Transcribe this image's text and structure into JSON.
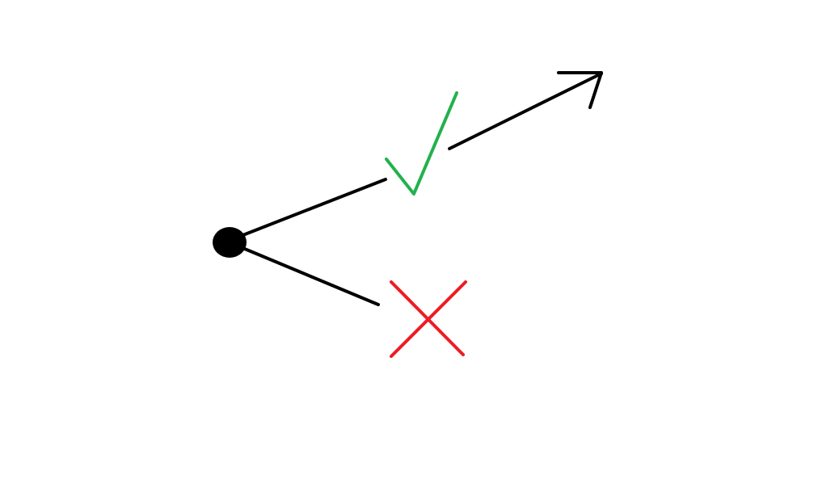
{
  "diagram": {
    "background": "#ffffff",
    "colors": {
      "line": "#000000",
      "check": "#22b14c",
      "cross": "#ed1c24"
    },
    "nodes": [
      {
        "name": "start-node",
        "shape": "filled-circle"
      }
    ],
    "branches": [
      {
        "name": "upper-branch",
        "marker": "check-icon",
        "outcome": "accepted",
        "continues_with": "arrow"
      },
      {
        "name": "lower-branch",
        "marker": "cross-icon",
        "outcome": "rejected",
        "continues_with": "none"
      }
    ]
  }
}
